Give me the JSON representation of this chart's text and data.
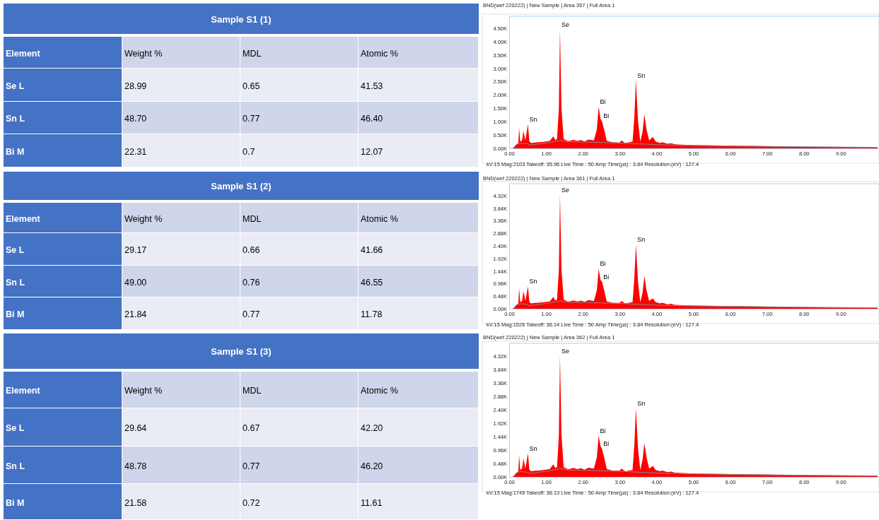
{
  "chart_data": [
    {
      "type": "other",
      "title": "Sample S1 (1)",
      "annotations": [
        "Element",
        "Weight %",
        "MDL",
        "Atomic %",
        "Se L",
        "28.99",
        "0.65",
        "41.53",
        "Sn L",
        "48.70",
        "0.77",
        "46.40",
        "Bi M",
        "22.31",
        "0.7",
        "12.07"
      ]
    },
    {
      "type": "area",
      "title": "BND(wef 220222) | New Sample | Area 357 | Full Area 1",
      "xlim": [
        0,
        10.04
      ],
      "ylim": [
        0,
        4950
      ],
      "xticks": [
        {
          "value": 0,
          "label": "0.00"
        },
        {
          "value": 1,
          "label": "1.00"
        },
        {
          "value": 2,
          "label": "2.00"
        },
        {
          "value": 3,
          "label": "3.00"
        },
        {
          "value": 4,
          "label": "4.00"
        },
        {
          "value": 5,
          "label": "5.00"
        },
        {
          "value": 6,
          "label": "6.00"
        },
        {
          "value": 7,
          "label": "7.00"
        },
        {
          "value": 8,
          "label": "8.00"
        },
        {
          "value": 9,
          "label": "9.00"
        }
      ],
      "yticks": [
        {
          "value": 0,
          "label": "0.00K"
        },
        {
          "value": 500,
          "label": "0.50K"
        },
        {
          "value": 1000,
          "label": "1.00K"
        },
        {
          "value": 1500,
          "label": "1.50K"
        },
        {
          "value": 2000,
          "label": "2.00K"
        },
        {
          "value": 2500,
          "label": "2.50K"
        },
        {
          "value": 3000,
          "label": "3.00K"
        },
        {
          "value": 3500,
          "label": "3.50K"
        },
        {
          "value": 4000,
          "label": "4.00K"
        },
        {
          "value": 4500,
          "label": "4.50K"
        }
      ],
      "x": [
        0,
        0.1,
        0.15,
        0.2,
        0.25,
        0.27,
        0.3,
        0.35,
        0.39,
        0.44,
        0.51,
        0.55,
        0.6,
        0.7,
        0.8,
        0.9,
        1.0,
        1.1,
        1.2,
        1.25,
        1.3,
        1.35,
        1.38,
        1.42,
        1.48,
        1.6,
        1.75,
        1.85,
        1.95,
        2.05,
        2.15,
        2.3,
        2.38,
        2.43,
        2.48,
        2.52,
        2.58,
        2.65,
        2.8,
        3.0,
        3.05,
        3.15,
        3.35,
        3.4,
        3.44,
        3.5,
        3.56,
        3.62,
        3.67,
        3.73,
        3.8,
        3.9,
        3.98,
        4.1,
        4.15,
        4.3,
        4.4,
        4.5,
        5,
        6,
        7,
        8,
        9,
        10
      ],
      "series": [
        {
          "type": "area",
          "color": "#ff0000",
          "values": [
            0,
            0,
            50,
            150,
            200,
            760,
            250,
            300,
            650,
            300,
            900,
            250,
            200,
            220,
            230,
            240,
            260,
            280,
            450,
            320,
            350,
            1500,
            4450,
            1500,
            350,
            270,
            320,
            280,
            310,
            260,
            330,
            300,
            700,
            1560,
            1100,
            1020,
            700,
            280,
            230,
            220,
            300,
            200,
            250,
            1200,
            2550,
            1000,
            250,
            600,
            1280,
            700,
            300,
            430,
            250,
            200,
            230,
            170,
            190,
            150,
            120,
            100,
            80,
            60,
            50,
            40
          ]
        },
        {
          "type": "line",
          "color": "#8c8c8c",
          "x": [
            0.1,
            0.2,
            0.3,
            0.5,
            0.55,
            0.7,
            1.0,
            1.4,
            1.6,
            2.0,
            3.0,
            4.0,
            5,
            6,
            8,
            10
          ],
          "values": [
            0,
            150,
            190,
            170,
            120,
            150,
            200,
            300,
            250,
            240,
            200,
            140,
            110,
            90,
            60,
            40
          ]
        }
      ],
      "annotations": [
        {
          "text": "Se",
          "x": 1.38,
          "y": 4450
        },
        {
          "text": "Sn",
          "x": 3.44,
          "y": 2550
        },
        {
          "text": "Bi",
          "x": 2.43,
          "y": 1560
        },
        {
          "text": "Bi",
          "x": 2.52,
          "y": 1020
        },
        {
          "text": "Sn",
          "x": 0.51,
          "y": 900
        },
        "kV:15 Mag:2103 Takeoff: 35.96 Live Time : 50 Amp Time(µs) : 3.84 Resolution:(eV) : 127.4"
      ]
    },
    {
      "type": "other",
      "title": "Sample S1 (2)",
      "annotations": [
        "Element",
        "Weight %",
        "MDL",
        "Atomic %",
        "Se L",
        "29.17",
        "0.66",
        "41.66",
        "Sn L",
        "49.00",
        "0.76",
        "46.55",
        "Bi M",
        "21.84",
        "0.77",
        "11.78"
      ]
    },
    {
      "type": "area",
      "title": "BND(wef 220222) | New Sample | Area 361 | Full Area 1",
      "xlim": [
        0,
        10.04
      ],
      "ylim": [
        0,
        4780
      ],
      "xticks": [
        {
          "value": 0,
          "label": "0.00"
        },
        {
          "value": 1,
          "label": "1.00"
        },
        {
          "value": 2,
          "label": "2.00"
        },
        {
          "value": 3,
          "label": "3.00"
        },
        {
          "value": 4,
          "label": "4.00"
        },
        {
          "value": 5,
          "label": "5.00"
        },
        {
          "value": 6,
          "label": "6.00"
        },
        {
          "value": 7,
          "label": "7.00"
        },
        {
          "value": 8,
          "label": "8.00"
        },
        {
          "value": 9,
          "label": "9.00"
        }
      ],
      "yticks": [
        {
          "value": 0,
          "label": "0.00K"
        },
        {
          "value": 480,
          "label": "0.48K"
        },
        {
          "value": 960,
          "label": "0.96K"
        },
        {
          "value": 1440,
          "label": "1.44K"
        },
        {
          "value": 1920,
          "label": "1.92K"
        },
        {
          "value": 2400,
          "label": "2.40K"
        },
        {
          "value": 2880,
          "label": "2.88K"
        },
        {
          "value": 3360,
          "label": "3.36K"
        },
        {
          "value": 3840,
          "label": "3.84K"
        },
        {
          "value": 4320,
          "label": "4.32K"
        }
      ],
      "x": [
        0,
        0.1,
        0.15,
        0.2,
        0.25,
        0.27,
        0.3,
        0.35,
        0.39,
        0.44,
        0.51,
        0.55,
        0.6,
        0.7,
        0.8,
        0.9,
        1.0,
        1.1,
        1.2,
        1.25,
        1.3,
        1.35,
        1.38,
        1.42,
        1.48,
        1.6,
        1.75,
        1.85,
        1.95,
        2.05,
        2.15,
        2.3,
        2.38,
        2.43,
        2.48,
        2.52,
        2.58,
        2.65,
        2.8,
        3.0,
        3.05,
        3.15,
        3.35,
        3.4,
        3.44,
        3.5,
        3.56,
        3.62,
        3.67,
        3.73,
        3.8,
        3.9,
        3.98,
        4.1,
        4.15,
        4.3,
        4.4,
        4.5,
        5,
        6,
        7,
        8,
        9,
        10
      ],
      "series": [
        {
          "type": "area",
          "color": "#ff0000",
          "values": [
            0,
            0,
            50,
            150,
            200,
            790,
            250,
            300,
            680,
            300,
            860,
            250,
            200,
            220,
            230,
            240,
            260,
            280,
            450,
            320,
            350,
            1500,
            4340,
            1500,
            350,
            270,
            320,
            280,
            310,
            260,
            330,
            300,
            700,
            1530,
            1100,
            1030,
            700,
            280,
            230,
            220,
            300,
            200,
            250,
            1200,
            2450,
            1000,
            250,
            600,
            1250,
            700,
            300,
            400,
            250,
            200,
            230,
            170,
            190,
            150,
            120,
            100,
            80,
            60,
            50,
            40
          ]
        },
        {
          "type": "line",
          "color": "#8c8c8c",
          "x": [
            0.1,
            0.2,
            0.3,
            0.5,
            0.55,
            0.7,
            1.0,
            1.4,
            1.6,
            2.0,
            3.0,
            4.0,
            5,
            6,
            8,
            10
          ],
          "values": [
            0,
            150,
            190,
            170,
            120,
            150,
            200,
            300,
            250,
            240,
            200,
            140,
            110,
            90,
            60,
            40
          ]
        }
      ],
      "annotations": [
        {
          "text": "Se",
          "x": 1.38,
          "y": 4340
        },
        {
          "text": "Sn",
          "x": 3.44,
          "y": 2450
        },
        {
          "text": "Bi",
          "x": 2.43,
          "y": 1530
        },
        {
          "text": "Bi",
          "x": 2.52,
          "y": 1030
        },
        {
          "text": "Sn",
          "x": 0.51,
          "y": 860
        },
        "kV:15 Mag:1526 Takeoff: 36.14 Live Time : 50 Amp Time(µs) : 3.84 Resolution:(eV) : 127.4"
      ]
    },
    {
      "type": "other",
      "title": "Sample S1 (3)",
      "annotations": [
        "Element",
        "Weight %",
        "MDL",
        "Atomic %",
        "Se L",
        "29.64",
        "0.67",
        "42.20",
        "Sn L",
        "48.78",
        "0.77",
        "46.20",
        "Bi M",
        "21.58",
        "0.72",
        "11.61"
      ]
    },
    {
      "type": "area",
      "title": "BND(wef 220222) | New Sample | Area 362 | Full Area 1",
      "xlim": [
        0,
        10.04
      ],
      "ylim": [
        0,
        4790
      ],
      "xticks": [
        {
          "value": 0,
          "label": "0.00"
        },
        {
          "value": 1,
          "label": "1.00"
        },
        {
          "value": 2,
          "label": "2.00"
        },
        {
          "value": 3,
          "label": "3.00"
        },
        {
          "value": 4,
          "label": "4.00"
        },
        {
          "value": 5,
          "label": "5.00"
        },
        {
          "value": 6,
          "label": "6.00"
        },
        {
          "value": 7,
          "label": "7.00"
        },
        {
          "value": 8,
          "label": "8.00"
        },
        {
          "value": 9,
          "label": "9.00"
        }
      ],
      "yticks": [
        {
          "value": 0,
          "label": "0.00K"
        },
        {
          "value": 480,
          "label": "0.48K"
        },
        {
          "value": 960,
          "label": "0.96K"
        },
        {
          "value": 1440,
          "label": "1.44K"
        },
        {
          "value": 1920,
          "label": "1.92K"
        },
        {
          "value": 2400,
          "label": "2.40K"
        },
        {
          "value": 2880,
          "label": "2.88K"
        },
        {
          "value": 3360,
          "label": "3.36K"
        },
        {
          "value": 3840,
          "label": "3.84K"
        },
        {
          "value": 4320,
          "label": "4.32K"
        }
      ],
      "x": [
        0,
        0.1,
        0.15,
        0.2,
        0.25,
        0.27,
        0.3,
        0.35,
        0.39,
        0.44,
        0.51,
        0.55,
        0.6,
        0.7,
        0.8,
        0.9,
        1.0,
        1.1,
        1.2,
        1.25,
        1.3,
        1.35,
        1.38,
        1.42,
        1.48,
        1.6,
        1.75,
        1.85,
        1.95,
        2.05,
        2.15,
        2.3,
        2.38,
        2.43,
        2.48,
        2.52,
        2.58,
        2.65,
        2.8,
        3.0,
        3.05,
        3.15,
        3.35,
        3.4,
        3.44,
        3.5,
        3.56,
        3.62,
        3.67,
        3.73,
        3.8,
        3.9,
        3.98,
        4.1,
        4.15,
        4.3,
        4.4,
        4.5,
        5,
        6,
        7,
        8,
        9,
        10
      ],
      "series": [
        {
          "type": "area",
          "color": "#ff0000",
          "values": [
            0,
            0,
            50,
            150,
            200,
            770,
            250,
            300,
            660,
            300,
            840,
            250,
            200,
            220,
            230,
            240,
            260,
            280,
            450,
            320,
            350,
            1500,
            4340,
            1500,
            350,
            270,
            320,
            280,
            310,
            260,
            330,
            300,
            700,
            1480,
            1100,
            1010,
            700,
            280,
            230,
            220,
            300,
            200,
            250,
            1200,
            2450,
            1000,
            250,
            600,
            1210,
            700,
            300,
            390,
            250,
            200,
            230,
            170,
            190,
            150,
            120,
            100,
            80,
            60,
            50,
            40
          ]
        },
        {
          "type": "line",
          "color": "#8c8c8c",
          "x": [
            0.1,
            0.2,
            0.3,
            0.5,
            0.55,
            0.7,
            1.0,
            1.4,
            1.6,
            2.0,
            3.0,
            4.0,
            5,
            6,
            8,
            10
          ],
          "values": [
            0,
            150,
            190,
            170,
            120,
            150,
            200,
            300,
            250,
            240,
            200,
            140,
            110,
            90,
            60,
            40
          ]
        }
      ],
      "annotations": [
        {
          "text": "Se",
          "x": 1.38,
          "y": 4340
        },
        {
          "text": "Sn",
          "x": 3.44,
          "y": 2450
        },
        {
          "text": "Bi",
          "x": 2.43,
          "y": 1480
        },
        {
          "text": "Bi",
          "x": 2.52,
          "y": 1010
        },
        {
          "text": "Sn",
          "x": 0.51,
          "y": 840
        },
        "kV:15 Mag:1745 Takeoff: 36.13 Live Time : 50 Amp Time(µs) : 3.84 Resolution:(eV) : 127.4"
      ]
    }
  ]
}
